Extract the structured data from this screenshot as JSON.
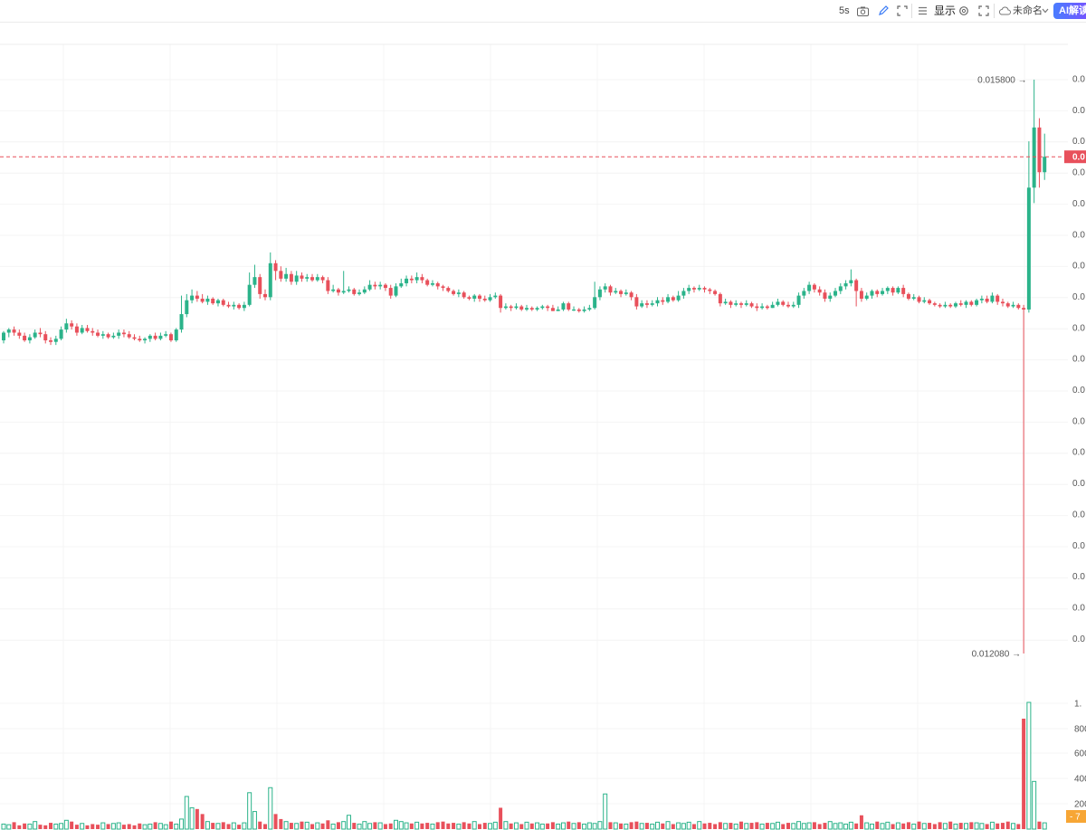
{
  "toolbar": {
    "interval": "5s",
    "display_label": "显示",
    "layout_name": "未命名",
    "ai_label": "AI解读"
  },
  "icons": [
    "camera-icon",
    "pencil-icon",
    "selection-icon",
    "list-icon",
    "gear-icon",
    "fullscreen-icon",
    "cloud-icon",
    "chevron-down-icon"
  ],
  "colors": {
    "up": "#2bb38a",
    "down": "#e8505b",
    "price_line": "#e8505b",
    "vol_marker": "#f7a635"
  },
  "chart_data": {
    "type": "candlestick",
    "price_axis_labels": [
      "0.0",
      "0.0",
      "0.0",
      "0.0",
      "0.0",
      "0.0",
      "0.0",
      "0.0",
      "0.0",
      "0.0",
      "0.0",
      "0.0",
      "0.0",
      "0.0",
      "0.0",
      "0.0",
      "0.0",
      "0.0",
      "0.0"
    ],
    "current_price_label": "0.0",
    "high_label": "0.015800",
    "low_label": "0.012080",
    "high": 0.0158,
    "low": 0.01208,
    "volume_axis_labels": [
      "1.",
      "800",
      "600",
      "400",
      "200"
    ],
    "volume_marker_label": "7",
    "candles": [
      [
        0.01411,
        0.01416,
        0.01417,
        0.01409
      ],
      [
        0.01416,
        0.01418,
        0.01419,
        0.01413
      ],
      [
        0.01418,
        0.01416,
        0.0142,
        0.01414
      ],
      [
        0.01416,
        0.01414,
        0.01418,
        0.01412
      ],
      [
        0.01414,
        0.01411,
        0.01416,
        0.0141
      ],
      [
        0.01411,
        0.01413,
        0.01415,
        0.01409
      ],
      [
        0.01413,
        0.01416,
        0.01418,
        0.01412
      ],
      [
        0.01416,
        0.01415,
        0.01419,
        0.01413
      ],
      [
        0.01415,
        0.01411,
        0.01417,
        0.01409
      ],
      [
        0.01411,
        0.0141,
        0.01413,
        0.01408
      ],
      [
        0.0141,
        0.01412,
        0.01414,
        0.01408
      ],
      [
        0.01412,
        0.01418,
        0.0142,
        0.01411
      ],
      [
        0.01418,
        0.01422,
        0.01425,
        0.01416
      ],
      [
        0.01422,
        0.0142,
        0.01424,
        0.01418
      ],
      [
        0.0142,
        0.01416,
        0.01422,
        0.01414
      ],
      [
        0.01416,
        0.01419,
        0.01421,
        0.01415
      ],
      [
        0.01419,
        0.01417,
        0.01421,
        0.01416
      ],
      [
        0.01417,
        0.01416,
        0.01419,
        0.01414
      ],
      [
        0.01416,
        0.01414,
        0.01418,
        0.01413
      ],
      [
        0.01414,
        0.01415,
        0.01417,
        0.01412
      ],
      [
        0.01415,
        0.01413,
        0.01416,
        0.01412
      ],
      [
        0.01413,
        0.01414,
        0.01416,
        0.01412
      ],
      [
        0.01414,
        0.01416,
        0.01418,
        0.01412
      ],
      [
        0.01416,
        0.01415,
        0.01418,
        0.01413
      ],
      [
        0.01415,
        0.01413,
        0.01417,
        0.01412
      ],
      [
        0.01413,
        0.01412,
        0.01415,
        0.01411
      ],
      [
        0.01412,
        0.01411,
        0.01414,
        0.0141
      ],
      [
        0.01411,
        0.01412,
        0.01413,
        0.01409
      ],
      [
        0.01412,
        0.01414,
        0.01415,
        0.0141
      ],
      [
        0.01414,
        0.01412,
        0.01416,
        0.01411
      ],
      [
        0.01412,
        0.01414,
        0.01416,
        0.01411
      ],
      [
        0.01414,
        0.01415,
        0.01417,
        0.01413
      ],
      [
        0.01415,
        0.01411,
        0.01416,
        0.0141
      ],
      [
        0.01411,
        0.01418,
        0.01419,
        0.0141
      ],
      [
        0.01418,
        0.01428,
        0.0144,
        0.01416
      ],
      [
        0.01428,
        0.01437,
        0.01441,
        0.01426
      ],
      [
        0.01437,
        0.0144,
        0.01444,
        0.01435
      ],
      [
        0.0144,
        0.01438,
        0.01443,
        0.01436
      ],
      [
        0.01438,
        0.01436,
        0.01441,
        0.01435
      ],
      [
        0.01436,
        0.01438,
        0.0144,
        0.01434
      ],
      [
        0.01438,
        0.01435,
        0.01439,
        0.01434
      ],
      [
        0.01435,
        0.01437,
        0.01438,
        0.01433
      ],
      [
        0.01437,
        0.01434,
        0.01438,
        0.01433
      ],
      [
        0.01434,
        0.01433,
        0.01436,
        0.01432
      ],
      [
        0.01433,
        0.01434,
        0.01436,
        0.01431
      ],
      [
        0.01434,
        0.01432,
        0.01435,
        0.01431
      ],
      [
        0.01432,
        0.01434,
        0.01436,
        0.0143
      ],
      [
        0.01434,
        0.01447,
        0.01455,
        0.01433
      ],
      [
        0.01447,
        0.01452,
        0.0146,
        0.01445
      ],
      [
        0.01452,
        0.01441,
        0.01454,
        0.01438
      ],
      [
        0.01441,
        0.01439,
        0.01444,
        0.01437
      ],
      [
        0.01439,
        0.01461,
        0.01468,
        0.01437
      ],
      [
        0.01461,
        0.01456,
        0.01463,
        0.0145
      ],
      [
        0.01456,
        0.01451,
        0.01459,
        0.01449
      ],
      [
        0.01451,
        0.01454,
        0.01458,
        0.01449
      ],
      [
        0.01454,
        0.01449,
        0.01456,
        0.01447
      ],
      [
        0.01449,
        0.01453,
        0.01456,
        0.01447
      ],
      [
        0.01453,
        0.01451,
        0.01455,
        0.01449
      ],
      [
        0.01451,
        0.01452,
        0.01454,
        0.01449
      ],
      [
        0.01452,
        0.0145,
        0.01454,
        0.01449
      ],
      [
        0.0145,
        0.01452,
        0.01454,
        0.01449
      ],
      [
        0.01452,
        0.0145,
        0.01453,
        0.01448
      ],
      [
        0.0145,
        0.01443,
        0.01452,
        0.01441
      ],
      [
        0.01443,
        0.01444,
        0.01447,
        0.01442
      ],
      [
        0.01444,
        0.01442,
        0.01445,
        0.0144
      ],
      [
        0.01442,
        0.01443,
        0.01456,
        0.01441
      ],
      [
        0.01443,
        0.01444,
        0.01446,
        0.01442
      ],
      [
        0.01444,
        0.01441,
        0.01445,
        0.0144
      ],
      [
        0.01441,
        0.01442,
        0.01444,
        0.0144
      ],
      [
        0.01442,
        0.01444,
        0.01446,
        0.01441
      ],
      [
        0.01444,
        0.01447,
        0.0145,
        0.01443
      ],
      [
        0.01447,
        0.01446,
        0.01449,
        0.01444
      ],
      [
        0.01446,
        0.01447,
        0.01449,
        0.01444
      ],
      [
        0.01447,
        0.01445,
        0.01448,
        0.01443
      ],
      [
        0.01445,
        0.0144,
        0.01447,
        0.01438
      ],
      [
        0.0144,
        0.01446,
        0.01448,
        0.01439
      ],
      [
        0.01446,
        0.01448,
        0.01451,
        0.01445
      ],
      [
        0.01448,
        0.01451,
        0.01453,
        0.01446
      ],
      [
        0.01451,
        0.0145,
        0.01453,
        0.01448
      ],
      [
        0.0145,
        0.01452,
        0.01455,
        0.01448
      ],
      [
        0.01452,
        0.0145,
        0.01454,
        0.01448
      ],
      [
        0.0145,
        0.01447,
        0.01451,
        0.01446
      ],
      [
        0.01447,
        0.01448,
        0.0145,
        0.01446
      ],
      [
        0.01448,
        0.01446,
        0.01449,
        0.01444
      ],
      [
        0.01446,
        0.01445,
        0.01447,
        0.01443
      ],
      [
        0.01445,
        0.01443,
        0.01446,
        0.01442
      ],
      [
        0.01443,
        0.01441,
        0.01444,
        0.0144
      ],
      [
        0.01441,
        0.01442,
        0.01444,
        0.01439
      ],
      [
        0.01442,
        0.01439,
        0.01443,
        0.01438
      ],
      [
        0.01439,
        0.01438,
        0.0144,
        0.01437
      ],
      [
        0.01438,
        0.0144,
        0.01441,
        0.01436
      ],
      [
        0.0144,
        0.01438,
        0.01441,
        0.01436
      ],
      [
        0.01438,
        0.01437,
        0.0144,
        0.01436
      ],
      [
        0.01437,
        0.01439,
        0.01441,
        0.01436
      ],
      [
        0.01439,
        0.0144,
        0.01442,
        0.01438
      ],
      [
        0.0144,
        0.01432,
        0.01441,
        0.01429
      ],
      [
        0.01432,
        0.01433,
        0.01435,
        0.01431
      ],
      [
        0.01433,
        0.01432,
        0.01434,
        0.0143
      ],
      [
        0.01432,
        0.01433,
        0.01435,
        0.01431
      ],
      [
        0.01433,
        0.01431,
        0.01434,
        0.0143
      ],
      [
        0.01431,
        0.01432,
        0.01434,
        0.0143
      ],
      [
        0.01432,
        0.01431,
        0.01433,
        0.0143
      ],
      [
        0.01431,
        0.01432,
        0.01433,
        0.0143
      ],
      [
        0.01432,
        0.01433,
        0.01434,
        0.01431
      ],
      [
        0.01433,
        0.01432,
        0.01434,
        0.0143
      ],
      [
        0.01432,
        0.0143,
        0.01434,
        0.0143
      ],
      [
        0.0143,
        0.01431,
        0.01433,
        0.0143
      ],
      [
        0.01431,
        0.01435,
        0.01436,
        0.0143
      ],
      [
        0.01435,
        0.01431,
        0.01436,
        0.0143
      ],
      [
        0.01431,
        0.01431,
        0.01433,
        0.0143
      ],
      [
        0.01431,
        0.0143,
        0.01432,
        0.01429
      ],
      [
        0.0143,
        0.01431,
        0.01433,
        0.01429
      ],
      [
        0.01431,
        0.01432,
        0.01434,
        0.0143
      ],
      [
        0.01432,
        0.01439,
        0.01449,
        0.01431
      ],
      [
        0.01439,
        0.01444,
        0.01446,
        0.01437
      ],
      [
        0.01444,
        0.01446,
        0.01448,
        0.01442
      ],
      [
        0.01446,
        0.01442,
        0.01447,
        0.0144
      ],
      [
        0.01442,
        0.01443,
        0.01445,
        0.01441
      ],
      [
        0.01443,
        0.01441,
        0.01444,
        0.01439
      ],
      [
        0.01441,
        0.01442,
        0.01444,
        0.0144
      ],
      [
        0.01442,
        0.01439,
        0.01443,
        0.01437
      ],
      [
        0.01439,
        0.01433,
        0.01441,
        0.01431
      ],
      [
        0.01433,
        0.01435,
        0.01437,
        0.01432
      ],
      [
        0.01435,
        0.01434,
        0.01437,
        0.01432
      ],
      [
        0.01434,
        0.01435,
        0.01437,
        0.01433
      ],
      [
        0.01435,
        0.01437,
        0.01439,
        0.01433
      ],
      [
        0.01437,
        0.01436,
        0.01439,
        0.01434
      ],
      [
        0.01436,
        0.01439,
        0.01441,
        0.01435
      ],
      [
        0.01439,
        0.01437,
        0.0144,
        0.01436
      ],
      [
        0.01437,
        0.0144,
        0.01443,
        0.01436
      ],
      [
        0.0144,
        0.01443,
        0.01445,
        0.01438
      ],
      [
        0.01443,
        0.01445,
        0.01447,
        0.01441
      ],
      [
        0.01445,
        0.01444,
        0.01446,
        0.01442
      ],
      [
        0.01444,
        0.01445,
        0.01447,
        0.01443
      ],
      [
        0.01445,
        0.01444,
        0.01446,
        0.01442
      ],
      [
        0.01444,
        0.01443,
        0.01445,
        0.01441
      ],
      [
        0.01443,
        0.01441,
        0.01444,
        0.0144
      ],
      [
        0.01441,
        0.01435,
        0.01442,
        0.01433
      ],
      [
        0.01435,
        0.01436,
        0.01438,
        0.01434
      ],
      [
        0.01436,
        0.01434,
        0.01437,
        0.01432
      ],
      [
        0.01434,
        0.01435,
        0.01437,
        0.01433
      ],
      [
        0.01435,
        0.01434,
        0.01436,
        0.01432
      ],
      [
        0.01434,
        0.01435,
        0.01437,
        0.01433
      ],
      [
        0.01435,
        0.01433,
        0.01436,
        0.01432
      ],
      [
        0.01433,
        0.01432,
        0.01435,
        0.0143
      ],
      [
        0.01432,
        0.01433,
        0.01435,
        0.01431
      ],
      [
        0.01433,
        0.01432,
        0.01434,
        0.01431
      ],
      [
        0.01432,
        0.01434,
        0.01436,
        0.01432
      ],
      [
        0.01434,
        0.01436,
        0.01438,
        0.01433
      ],
      [
        0.01436,
        0.01434,
        0.01437,
        0.01433
      ],
      [
        0.01434,
        0.01433,
        0.01436,
        0.01432
      ],
      [
        0.01433,
        0.01434,
        0.01436,
        0.01432
      ],
      [
        0.01434,
        0.0144,
        0.01442,
        0.01432
      ],
      [
        0.0144,
        0.01443,
        0.01445,
        0.01438
      ],
      [
        0.01443,
        0.01447,
        0.01449,
        0.01441
      ],
      [
        0.01447,
        0.01444,
        0.01448,
        0.01442
      ],
      [
        0.01444,
        0.01442,
        0.01446,
        0.0144
      ],
      [
        0.01442,
        0.01438,
        0.01444,
        0.01436
      ],
      [
        0.01438,
        0.0144,
        0.01442,
        0.01436
      ],
      [
        0.0144,
        0.01443,
        0.01445,
        0.01439
      ],
      [
        0.01443,
        0.01446,
        0.01448,
        0.01441
      ],
      [
        0.01446,
        0.01448,
        0.0145,
        0.01444
      ],
      [
        0.01448,
        0.0145,
        0.01457,
        0.01446
      ],
      [
        0.0145,
        0.01443,
        0.01451,
        0.01433
      ],
      [
        0.01443,
        0.01438,
        0.01445,
        0.01436
      ],
      [
        0.01438,
        0.0144,
        0.01442,
        0.01437
      ],
      [
        0.0144,
        0.01443,
        0.01444,
        0.01438
      ],
      [
        0.01443,
        0.01441,
        0.01444,
        0.01439
      ],
      [
        0.01441,
        0.01443,
        0.01445,
        0.0144
      ],
      [
        0.01443,
        0.01445,
        0.01446,
        0.01441
      ],
      [
        0.01445,
        0.01442,
        0.01446,
        0.0144
      ],
      [
        0.01442,
        0.01445,
        0.01446,
        0.01441
      ],
      [
        0.01445,
        0.01441,
        0.01447,
        0.01439
      ],
      [
        0.01441,
        0.01438,
        0.01442,
        0.01437
      ],
      [
        0.01438,
        0.01439,
        0.01441,
        0.01437
      ],
      [
        0.01439,
        0.01436,
        0.0144,
        0.01435
      ],
      [
        0.01436,
        0.01437,
        0.01439,
        0.01435
      ],
      [
        0.01437,
        0.01435,
        0.01438,
        0.01434
      ],
      [
        0.01435,
        0.01434,
        0.01436,
        0.01433
      ],
      [
        0.01434,
        0.01433,
        0.01435,
        0.01432
      ],
      [
        0.01433,
        0.01434,
        0.01436,
        0.01432
      ],
      [
        0.01434,
        0.01433,
        0.01435,
        0.01432
      ],
      [
        0.01433,
        0.01435,
        0.01436,
        0.01432
      ],
      [
        0.01435,
        0.01434,
        0.01437,
        0.01433
      ],
      [
        0.01434,
        0.01436,
        0.01437,
        0.01432
      ],
      [
        0.01436,
        0.01434,
        0.01437,
        0.01433
      ],
      [
        0.01434,
        0.01437,
        0.01438,
        0.01433
      ],
      [
        0.01437,
        0.01438,
        0.0144,
        0.01435
      ],
      [
        0.01438,
        0.01436,
        0.0144,
        0.01435
      ],
      [
        0.01436,
        0.0144,
        0.01442,
        0.01435
      ],
      [
        0.0144,
        0.01436,
        0.01441,
        0.01434
      ],
      [
        0.01436,
        0.01435,
        0.01438,
        0.01433
      ],
      [
        0.01435,
        0.01433,
        0.01436,
        0.01432
      ],
      [
        0.01433,
        0.01434,
        0.01436,
        0.01432
      ],
      [
        0.01434,
        0.01432,
        0.01435,
        0.01431
      ],
      [
        0.01432,
        0.01431,
        0.01434,
        0.01208
      ],
      [
        0.01431,
        0.0151,
        0.0154,
        0.01429
      ],
      [
        0.0151,
        0.01549,
        0.0158,
        0.015
      ],
      [
        0.01549,
        0.0152,
        0.01555,
        0.0151
      ],
      [
        0.0152,
        0.0153,
        0.01545,
        0.01515
      ]
    ],
    "volumes": [
      40,
      35,
      55,
      30,
      45,
      40,
      60,
      35,
      30,
      50,
      40,
      45,
      70,
      60,
      35,
      45,
      30,
      40,
      35,
      50,
      40,
      45,
      50,
      35,
      40,
      30,
      45,
      35,
      40,
      55,
      45,
      35,
      60,
      40,
      80,
      260,
      170,
      160,
      120,
      60,
      50,
      45,
      55,
      40,
      50,
      35,
      50,
      290,
      140,
      60,
      40,
      330,
      120,
      80,
      60,
      50,
      45,
      60,
      55,
      40,
      50,
      45,
      70,
      40,
      55,
      60,
      110,
      50,
      40,
      60,
      45,
      55,
      50,
      40,
      45,
      70,
      60,
      50,
      45,
      55,
      45,
      50,
      40,
      55,
      60,
      45,
      50,
      40,
      55,
      45,
      60,
      40,
      50,
      45,
      55,
      170,
      60,
      45,
      50,
      40,
      55,
      45,
      50,
      40,
      45,
      55,
      40,
      50,
      60,
      45,
      55,
      40,
      50,
      45,
      60,
      280,
      55,
      50,
      45,
      40,
      55,
      60,
      45,
      50,
      40,
      55,
      45,
      60,
      40,
      50,
      45,
      55,
      40,
      60,
      45,
      50,
      40,
      55,
      45,
      50,
      40,
      60,
      45,
      50,
      55,
      40,
      50,
      45,
      55,
      40,
      50,
      45,
      60,
      45,
      50,
      55,
      40,
      50,
      60,
      45,
      50,
      40,
      55,
      45,
      110,
      50,
      40,
      60,
      45,
      55,
      40,
      50,
      45,
      55,
      40,
      60,
      45,
      50,
      40,
      55,
      45,
      60,
      40,
      50,
      45,
      55,
      50,
      45,
      40,
      55,
      45,
      50,
      60,
      45,
      40,
      880,
      1010,
      380,
      60,
      50
    ]
  }
}
